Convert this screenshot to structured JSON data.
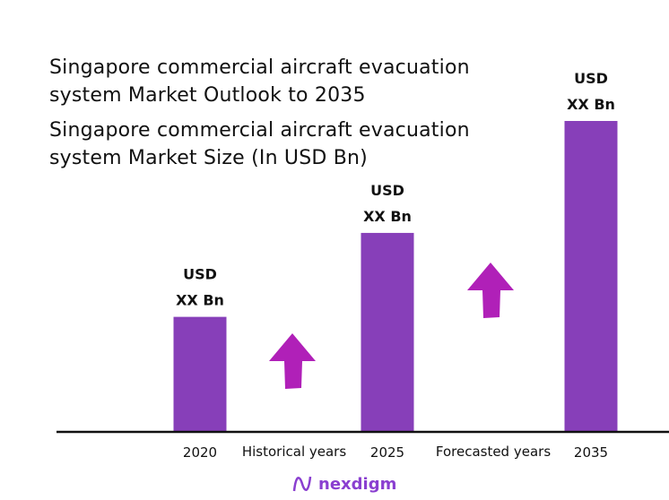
{
  "chart_data": {
    "type": "bar",
    "title": "Singapore commercial aircraft evacuation system Market Outlook to 2035",
    "subtitle": "Singapore commercial aircraft evacuation system Market Size (In USD Bn)",
    "categories": [
      "2020",
      "2025",
      "2035"
    ],
    "values": [
      0.37,
      0.64,
      1.0
    ],
    "value_note_relative": true,
    "data_labels": [
      [
        "USD",
        "XX Bn"
      ],
      [
        "USD",
        "XX Bn"
      ],
      [
        "USD",
        "XX Bn"
      ]
    ],
    "period_labels": [
      "Historical years",
      "Forecasted years"
    ],
    "xlabel": "",
    "ylabel": "",
    "grid": false,
    "colors": {
      "bar": "#873fb9",
      "arrow": "#b020b8",
      "axis": "#111111"
    }
  },
  "brand": {
    "name": "nexdigm",
    "color": "#8a3fd0"
  }
}
